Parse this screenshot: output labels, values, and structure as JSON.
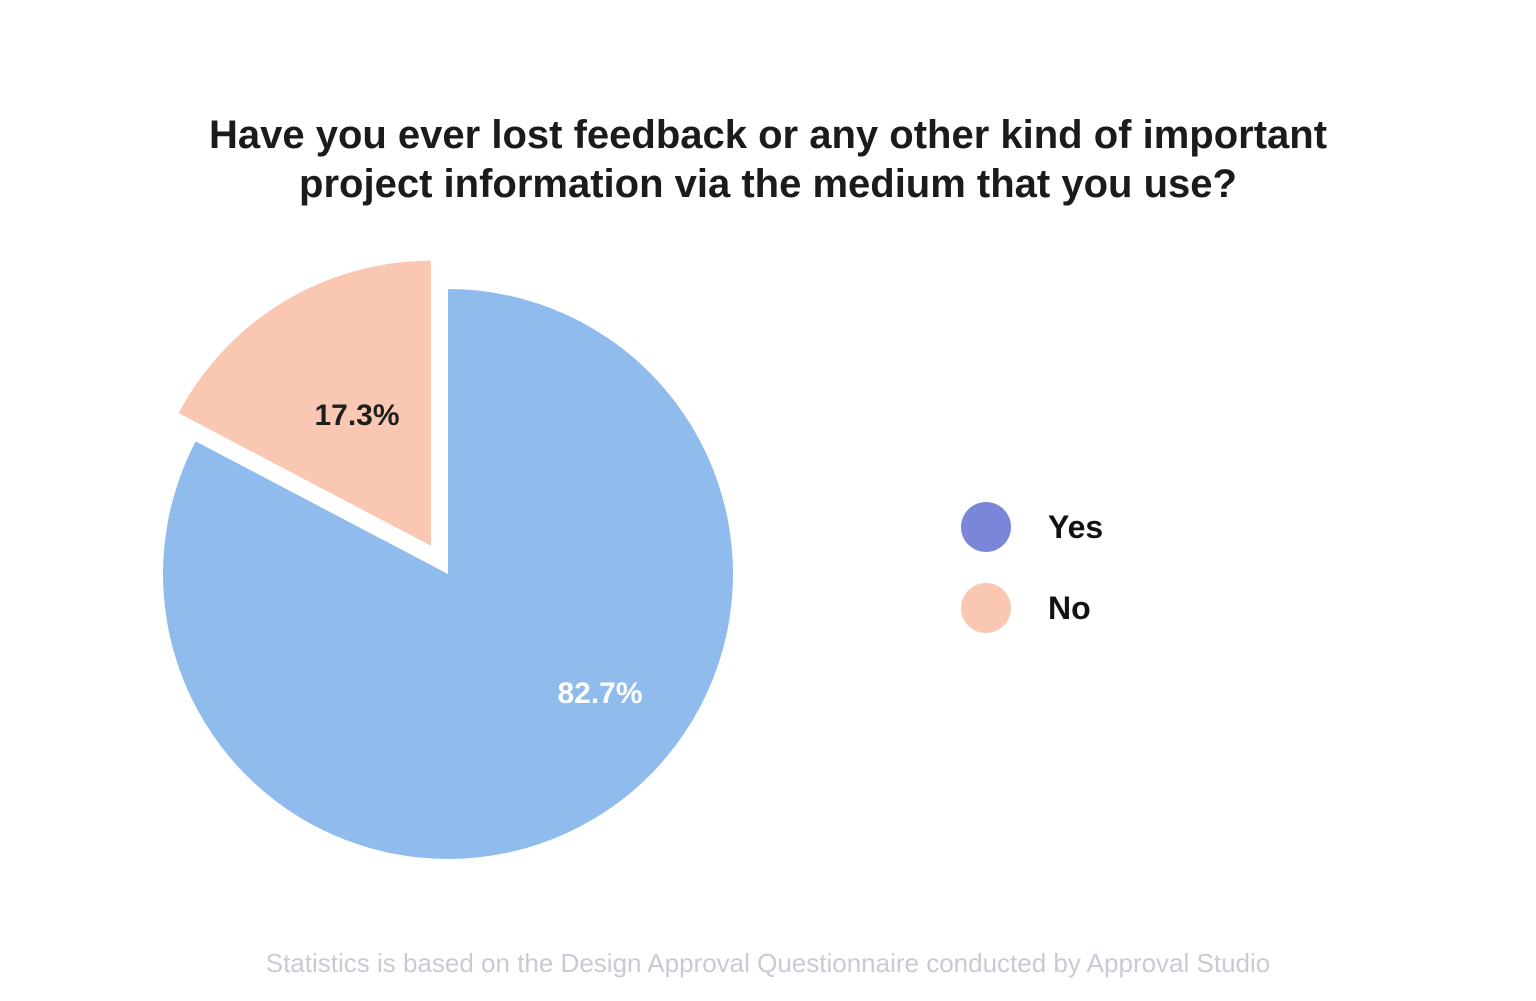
{
  "chart_data": {
    "type": "pie",
    "title": "Have you ever lost feedback or any other kind of important project information via the medium that you use?",
    "title_lines": [
      "Have you ever lost feedback or any other kind of important",
      "project information via the medium that you use?"
    ],
    "slices": [
      {
        "label": "Yes",
        "value": 82.7,
        "pct_label": "82.7%",
        "color": "#8FBCEC",
        "legend_color": "#7C86D8",
        "exploded": false
      },
      {
        "label": "No",
        "value": 17.3,
        "pct_label": "17.3%",
        "color": "#F9C7B2",
        "legend_color": "#F9C7B2",
        "exploded": true
      }
    ],
    "start_angle_deg": 0,
    "direction": "clockwise",
    "legend_position": "right",
    "background_color": "#ffffff",
    "title_color": "#1b1b1b",
    "footnote_color": "#c8cbd5",
    "footnote": "Statistics is based on the Design Approval Questionnaire conducted by Approval Studio"
  }
}
